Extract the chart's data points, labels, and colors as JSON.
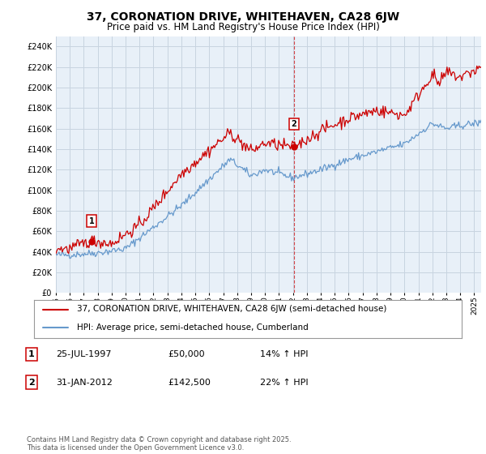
{
  "title": "37, CORONATION DRIVE, WHITEHAVEN, CA28 6JW",
  "subtitle": "Price paid vs. HM Land Registry's House Price Index (HPI)",
  "legend_line1": "37, CORONATION DRIVE, WHITEHAVEN, CA28 6JW (semi-detached house)",
  "legend_line2": "HPI: Average price, semi-detached house, Cumberland",
  "sale1_date_str": "25-JUL-1997",
  "sale1_price_str": "£50,000",
  "sale1_hpi_str": "14% ↑ HPI",
  "sale2_date_str": "31-JAN-2012",
  "sale2_price_str": "£142,500",
  "sale2_hpi_str": "22% ↑ HPI",
  "footer": "Contains HM Land Registry data © Crown copyright and database right 2025.\nThis data is licensed under the Open Government Licence v3.0.",
  "sale1_x": 1997.56,
  "sale1_y": 50000,
  "sale2_x": 2012.08,
  "sale2_y": 142500,
  "red_color": "#cc0000",
  "blue_color": "#6699cc",
  "chart_bg": "#e8f0f8",
  "background_color": "#ffffff",
  "grid_color": "#c8d4e0",
  "ylim": [
    0,
    250000
  ],
  "xlim_start": 1995.0,
  "xlim_end": 2025.5,
  "ytick_interval": 20000
}
